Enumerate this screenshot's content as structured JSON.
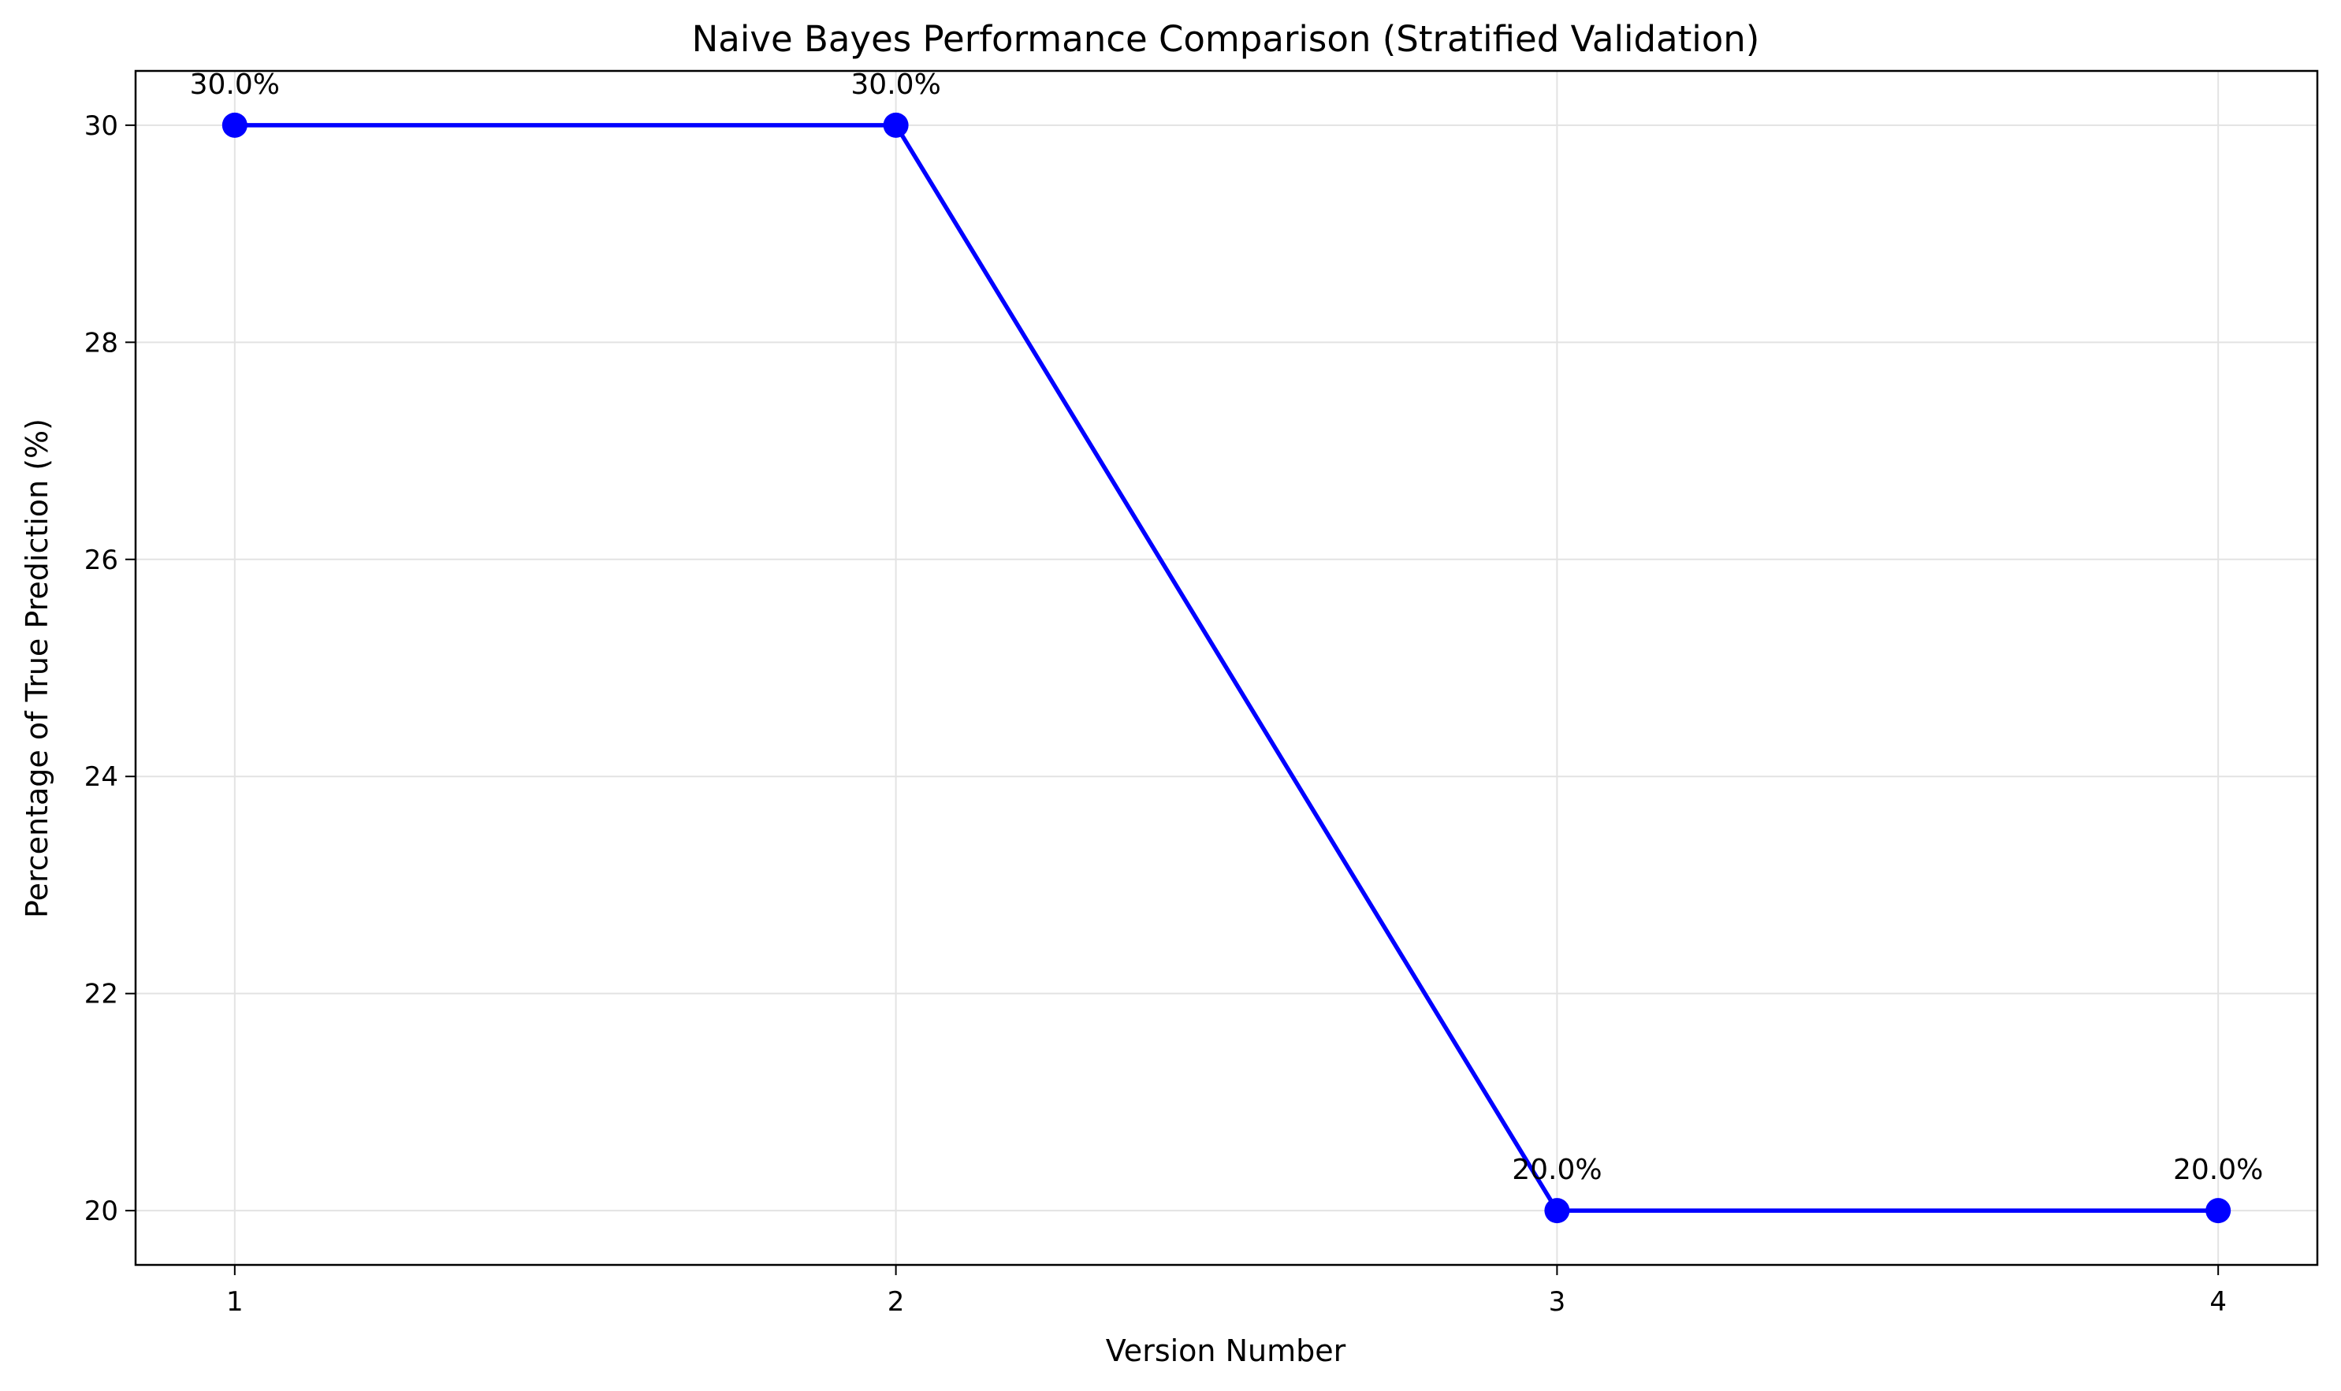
{
  "chart_data": {
    "type": "line",
    "title": "Naive Bayes Performance Comparison (Stratified Validation)",
    "xlabel": "Version Number",
    "ylabel": "Percentage of True Prediction (%)",
    "x": [
      1,
      2,
      3,
      4
    ],
    "series": [
      {
        "values": [
          30,
          30,
          20,
          20
        ],
        "data_labels": [
          "30.0%",
          "30.0%",
          "20.0%",
          "20.0%"
        ],
        "color": "#0000ff",
        "marker": "circle"
      }
    ],
    "xticks": [
      1,
      2,
      3,
      4
    ],
    "xtick_labels": [
      "1",
      "2",
      "3",
      "4"
    ],
    "yticks": [
      20,
      22,
      24,
      26,
      28,
      30
    ],
    "ytick_labels": [
      "20",
      "22",
      "24",
      "26",
      "28",
      "30"
    ],
    "xlim": [
      0.85,
      4.15
    ],
    "ylim": [
      19.5,
      30.5
    ],
    "grid": true,
    "legend": "none"
  }
}
